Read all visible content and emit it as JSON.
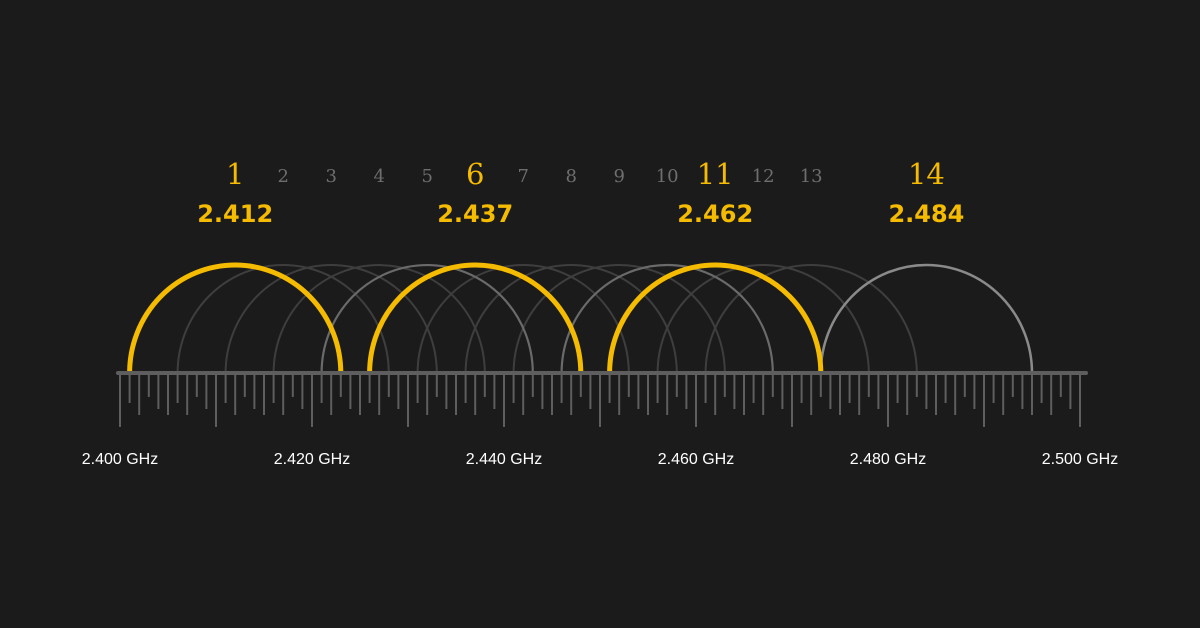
{
  "colors": {
    "background": "#1b1b1b",
    "highlight": "#f5bb00",
    "channel_label_dim": "#6e6e6e",
    "arc_dim": "#3e3e3e",
    "arc_mid": "#6a6a6a",
    "arc_light": "#8a8a8a",
    "axis": "#5e5e5e",
    "axis_label": "#ffffff"
  },
  "channels": [
    {
      "number": "1",
      "center_ghz": 2.412,
      "highlight": true,
      "freq_label": "2.412",
      "arc_style": "highlight"
    },
    {
      "number": "2",
      "center_ghz": 2.417,
      "highlight": false,
      "arc_style": "dim"
    },
    {
      "number": "3",
      "center_ghz": 2.422,
      "highlight": false,
      "arc_style": "dim"
    },
    {
      "number": "4",
      "center_ghz": 2.427,
      "highlight": false,
      "arc_style": "dim"
    },
    {
      "number": "5",
      "center_ghz": 2.432,
      "highlight": false,
      "arc_style": "mid"
    },
    {
      "number": "6",
      "center_ghz": 2.437,
      "highlight": true,
      "freq_label": "2.437",
      "arc_style": "highlight"
    },
    {
      "number": "7",
      "center_ghz": 2.442,
      "highlight": false,
      "arc_style": "dim"
    },
    {
      "number": "8",
      "center_ghz": 2.447,
      "highlight": false,
      "arc_style": "dim"
    },
    {
      "number": "9",
      "center_ghz": 2.452,
      "highlight": false,
      "arc_style": "dim"
    },
    {
      "number": "10",
      "center_ghz": 2.457,
      "highlight": false,
      "arc_style": "mid"
    },
    {
      "number": "11",
      "center_ghz": 2.462,
      "highlight": true,
      "freq_label": "2.462",
      "arc_style": "highlight"
    },
    {
      "number": "12",
      "center_ghz": 2.467,
      "highlight": false,
      "arc_style": "dim"
    },
    {
      "number": "13",
      "center_ghz": 2.472,
      "highlight": false,
      "arc_style": "dim"
    },
    {
      "number": "14",
      "center_ghz": 2.484,
      "highlight": true,
      "freq_label": "2.484",
      "arc_style": "light"
    }
  ],
  "channel_width_ghz": 0.022,
  "axis": {
    "min_ghz": 2.4,
    "max_ghz": 2.5,
    "tick_step_ghz": 0.001,
    "labels": [
      {
        "value": 2.4,
        "text": "2.400 GHz"
      },
      {
        "value": 2.42,
        "text": "2.420 GHz"
      },
      {
        "value": 2.44,
        "text": "2.440 GHz"
      },
      {
        "value": 2.46,
        "text": "2.460 GHz"
      },
      {
        "value": 2.48,
        "text": "2.480 GHz"
      },
      {
        "value": 2.5,
        "text": "2.500 GHz"
      }
    ]
  }
}
